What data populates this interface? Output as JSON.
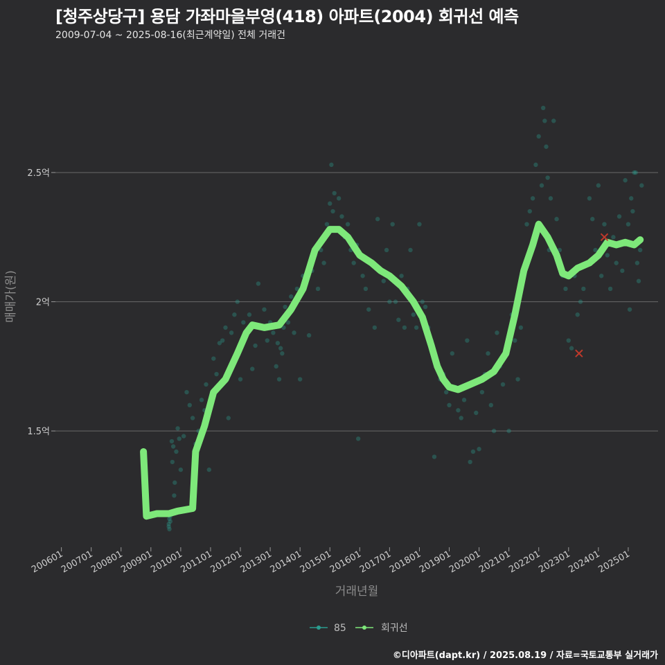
{
  "header": {
    "title": "[청주상당구] 용담 가좌마을부영(418) 아파트(2004) 회귀선 예측",
    "subtitle": "2009-07-04 ~ 2025-08-16(최근계약일) 전체 거래건"
  },
  "caption": "©디아파트(dapt.kr) / 2025.08.19 / 자료=국토교통부 실거래가",
  "chart_data": {
    "type": "scatter",
    "title": "[청주상당구] 용담 가좌마을부영(418) 아파트(2004) 회귀선 예측",
    "xlabel": "거래년월",
    "ylabel": "매매가(원)",
    "xlim": [
      2005.8,
      2026.0
    ],
    "ylim": [
      1.05,
      2.98
    ],
    "x_ticks": [
      {
        "v": 2006,
        "label": "200601"
      },
      {
        "v": 2007,
        "label": "200701"
      },
      {
        "v": 2008,
        "label": "200801"
      },
      {
        "v": 2009,
        "label": "200901"
      },
      {
        "v": 2010,
        "label": "201001"
      },
      {
        "v": 2011,
        "label": "201101"
      },
      {
        "v": 2012,
        "label": "201201"
      },
      {
        "v": 2013,
        "label": "201301"
      },
      {
        "v": 2014,
        "label": "201401"
      },
      {
        "v": 2015,
        "label": "201501"
      },
      {
        "v": 2016,
        "label": "201601"
      },
      {
        "v": 2017,
        "label": "201701"
      },
      {
        "v": 2018,
        "label": "201801"
      },
      {
        "v": 2019,
        "label": "201901"
      },
      {
        "v": 2020,
        "label": "202001"
      },
      {
        "v": 2021,
        "label": "202101"
      },
      {
        "v": 2022,
        "label": "202201"
      },
      {
        "v": 2023,
        "label": "202301"
      },
      {
        "v": 2024,
        "label": "202401"
      },
      {
        "v": 2025,
        "label": "202501"
      }
    ],
    "y_ticks": [
      {
        "v": 1.5,
        "label": "1.5억"
      },
      {
        "v": 2.0,
        "label": "2억"
      },
      {
        "v": 2.5,
        "label": "2.5억"
      }
    ],
    "legend": [
      {
        "name": "85",
        "color": "#2a9d8f"
      },
      {
        "name": "회귀선",
        "color": "#7ee87a"
      }
    ],
    "series": [
      {
        "name": "85",
        "color": "#2a9d8f",
        "points": [
          [
            2009.6,
            1.14
          ],
          [
            2009.6,
            1.13
          ],
          [
            2009.62,
            1.12
          ],
          [
            2009.62,
            1.16
          ],
          [
            2009.65,
            1.15
          ],
          [
            2009.65,
            1.17
          ],
          [
            2009.7,
            1.46
          ],
          [
            2009.72,
            1.38
          ],
          [
            2009.75,
            1.44
          ],
          [
            2009.78,
            1.25
          ],
          [
            2009.8,
            1.3
          ],
          [
            2009.85,
            1.42
          ],
          [
            2009.9,
            1.51
          ],
          [
            2009.95,
            1.47
          ],
          [
            2010.0,
            1.35
          ],
          [
            2010.1,
            1.48
          ],
          [
            2010.2,
            1.65
          ],
          [
            2010.3,
            1.6
          ],
          [
            2010.4,
            1.55
          ],
          [
            2010.5,
            1.45
          ],
          [
            2010.6,
            1.5
          ],
          [
            2010.7,
            1.62
          ],
          [
            2010.8,
            1.58
          ],
          [
            2010.85,
            1.68
          ],
          [
            2010.95,
            1.35
          ],
          [
            2011.05,
            1.65
          ],
          [
            2011.1,
            1.78
          ],
          [
            2011.2,
            1.72
          ],
          [
            2011.3,
            1.84
          ],
          [
            2011.4,
            1.85
          ],
          [
            2011.5,
            1.9
          ],
          [
            2011.6,
            1.55
          ],
          [
            2011.7,
            1.88
          ],
          [
            2011.8,
            1.95
          ],
          [
            2011.9,
            2.0
          ],
          [
            2012.0,
            1.7
          ],
          [
            2012.1,
            1.92
          ],
          [
            2012.2,
            1.88
          ],
          [
            2012.3,
            1.95
          ],
          [
            2012.4,
            1.74
          ],
          [
            2012.5,
            1.83
          ],
          [
            2012.6,
            2.07
          ],
          [
            2012.7,
            1.9
          ],
          [
            2012.8,
            1.97
          ],
          [
            2012.9,
            1.85
          ],
          [
            2013.0,
            1.92
          ],
          [
            2013.1,
            1.88
          ],
          [
            2013.2,
            1.75
          ],
          [
            2013.25,
            1.84
          ],
          [
            2013.3,
            1.7
          ],
          [
            2013.35,
            1.82
          ],
          [
            2013.4,
            1.8
          ],
          [
            2013.45,
            1.9
          ],
          [
            2013.5,
            1.98
          ],
          [
            2013.6,
            1.92
          ],
          [
            2013.7,
            2.02
          ],
          [
            2013.8,
            1.88
          ],
          [
            2013.9,
            2.05
          ],
          [
            2014.0,
            1.7
          ],
          [
            2014.1,
            2.1
          ],
          [
            2014.2,
            2.07
          ],
          [
            2014.3,
            1.87
          ],
          [
            2014.4,
            2.12
          ],
          [
            2014.5,
            2.18
          ],
          [
            2014.6,
            2.05
          ],
          [
            2014.7,
            2.2
          ],
          [
            2014.8,
            2.15
          ],
          [
            2014.9,
            2.3
          ],
          [
            2015.0,
            2.38
          ],
          [
            2015.05,
            2.53
          ],
          [
            2015.1,
            2.35
          ],
          [
            2015.15,
            2.42
          ],
          [
            2015.2,
            2.28
          ],
          [
            2015.3,
            2.4
          ],
          [
            2015.4,
            2.33
          ],
          [
            2015.5,
            2.25
          ],
          [
            2015.6,
            2.3
          ],
          [
            2015.7,
            2.2
          ],
          [
            2015.8,
            2.15
          ],
          [
            2015.9,
            2.22
          ],
          [
            2015.95,
            1.47
          ],
          [
            2016.0,
            2.18
          ],
          [
            2016.1,
            2.1
          ],
          [
            2016.2,
            2.05
          ],
          [
            2016.3,
            1.97
          ],
          [
            2016.4,
            2.15
          ],
          [
            2016.5,
            1.9
          ],
          [
            2016.6,
            2.32
          ],
          [
            2016.7,
            2.12
          ],
          [
            2016.8,
            2.08
          ],
          [
            2016.9,
            2.2
          ],
          [
            2017.0,
            2.0
          ],
          [
            2017.1,
            2.3
          ],
          [
            2017.2,
            2.0
          ],
          [
            2017.3,
            1.93
          ],
          [
            2017.4,
            2.1
          ],
          [
            2017.5,
            1.9
          ],
          [
            2017.6,
            2.05
          ],
          [
            2017.7,
            2.2
          ],
          [
            2017.8,
            1.95
          ],
          [
            2017.9,
            1.9
          ],
          [
            2018.0,
            2.3
          ],
          [
            2018.1,
            2.0
          ],
          [
            2018.2,
            1.98
          ],
          [
            2018.3,
            1.9
          ],
          [
            2018.4,
            1.85
          ],
          [
            2018.5,
            1.4
          ],
          [
            2018.6,
            1.75
          ],
          [
            2018.7,
            1.7
          ],
          [
            2018.8,
            1.72
          ],
          [
            2018.9,
            1.65
          ],
          [
            2019.0,
            1.6
          ],
          [
            2019.1,
            1.8
          ],
          [
            2019.2,
            1.67
          ],
          [
            2019.3,
            1.58
          ],
          [
            2019.4,
            1.55
          ],
          [
            2019.5,
            1.62
          ],
          [
            2019.6,
            1.85
          ],
          [
            2019.7,
            1.38
          ],
          [
            2019.8,
            1.42
          ],
          [
            2019.9,
            1.57
          ],
          [
            2020.0,
            1.43
          ],
          [
            2020.1,
            1.65
          ],
          [
            2020.2,
            1.72
          ],
          [
            2020.3,
            1.8
          ],
          [
            2020.4,
            1.6
          ],
          [
            2020.5,
            1.5
          ],
          [
            2020.6,
            1.88
          ],
          [
            2020.7,
            1.75
          ],
          [
            2020.8,
            1.68
          ],
          [
            2020.9,
            1.82
          ],
          [
            2021.0,
            1.5
          ],
          [
            2021.1,
            1.95
          ],
          [
            2021.2,
            1.85
          ],
          [
            2021.3,
            1.7
          ],
          [
            2021.4,
            1.9
          ],
          [
            2021.5,
            2.1
          ],
          [
            2021.6,
            2.3
          ],
          [
            2021.7,
            2.35
          ],
          [
            2021.8,
            2.4
          ],
          [
            2021.9,
            2.53
          ],
          [
            2022.0,
            2.64
          ],
          [
            2022.1,
            2.45
          ],
          [
            2022.15,
            2.75
          ],
          [
            2022.2,
            2.7
          ],
          [
            2022.25,
            2.6
          ],
          [
            2022.3,
            2.48
          ],
          [
            2022.35,
            2.2
          ],
          [
            2022.4,
            2.4
          ],
          [
            2022.5,
            2.7
          ],
          [
            2022.6,
            2.32
          ],
          [
            2022.7,
            2.2
          ],
          [
            2022.8,
            2.1
          ],
          [
            2022.9,
            2.05
          ],
          [
            2023.0,
            1.85
          ],
          [
            2023.1,
            1.82
          ],
          [
            2023.2,
            2.1
          ],
          [
            2023.3,
            1.95
          ],
          [
            2023.4,
            2.0
          ],
          [
            2023.5,
            2.05
          ],
          [
            2023.6,
            2.15
          ],
          [
            2023.7,
            2.4
          ],
          [
            2023.8,
            2.32
          ],
          [
            2023.9,
            2.2
          ],
          [
            2024.0,
            2.45
          ],
          [
            2024.1,
            2.1
          ],
          [
            2024.2,
            2.3
          ],
          [
            2024.3,
            2.18
          ],
          [
            2024.4,
            2.05
          ],
          [
            2024.5,
            2.25
          ],
          [
            2024.6,
            2.15
          ],
          [
            2024.7,
            2.33
          ],
          [
            2024.8,
            2.12
          ],
          [
            2024.9,
            2.47
          ],
          [
            2025.0,
            2.3
          ],
          [
            2025.05,
            1.97
          ],
          [
            2025.1,
            2.4
          ],
          [
            2025.15,
            2.35
          ],
          [
            2025.2,
            2.5
          ],
          [
            2025.25,
            2.5
          ],
          [
            2025.3,
            2.15
          ],
          [
            2025.35,
            2.08
          ],
          [
            2025.4,
            2.2
          ],
          [
            2025.45,
            2.45
          ]
        ]
      },
      {
        "name": "회귀선",
        "color": "#7ee87a",
        "points": [
          [
            2008.75,
            1.42
          ],
          [
            2008.85,
            1.17
          ],
          [
            2009.2,
            1.18
          ],
          [
            2009.6,
            1.18
          ],
          [
            2009.9,
            1.19
          ],
          [
            2010.4,
            1.2
          ],
          [
            2010.5,
            1.42
          ],
          [
            2010.8,
            1.52
          ],
          [
            2011.1,
            1.65
          ],
          [
            2011.5,
            1.7
          ],
          [
            2011.9,
            1.8
          ],
          [
            2012.2,
            1.88
          ],
          [
            2012.4,
            1.91
          ],
          [
            2012.8,
            1.9
          ],
          [
            2013.3,
            1.91
          ],
          [
            2013.7,
            1.97
          ],
          [
            2014.1,
            2.05
          ],
          [
            2014.5,
            2.2
          ],
          [
            2015.0,
            2.28
          ],
          [
            2015.3,
            2.28
          ],
          [
            2015.6,
            2.25
          ],
          [
            2016.0,
            2.18
          ],
          [
            2016.4,
            2.15
          ],
          [
            2016.7,
            2.12
          ],
          [
            2017.0,
            2.1
          ],
          [
            2017.4,
            2.06
          ],
          [
            2017.8,
            2.0
          ],
          [
            2018.1,
            1.94
          ],
          [
            2018.4,
            1.83
          ],
          [
            2018.6,
            1.75
          ],
          [
            2018.8,
            1.7
          ],
          [
            2019.0,
            1.67
          ],
          [
            2019.3,
            1.66
          ],
          [
            2019.7,
            1.68
          ],
          [
            2020.1,
            1.7
          ],
          [
            2020.5,
            1.73
          ],
          [
            2020.9,
            1.8
          ],
          [
            2021.2,
            1.95
          ],
          [
            2021.5,
            2.12
          ],
          [
            2021.8,
            2.22
          ],
          [
            2022.0,
            2.3
          ],
          [
            2022.3,
            2.25
          ],
          [
            2022.6,
            2.18
          ],
          [
            2022.8,
            2.11
          ],
          [
            2023.0,
            2.1
          ],
          [
            2023.3,
            2.13
          ],
          [
            2023.7,
            2.15
          ],
          [
            2024.0,
            2.18
          ],
          [
            2024.3,
            2.23
          ],
          [
            2024.6,
            2.22
          ],
          [
            2024.9,
            2.23
          ],
          [
            2025.2,
            2.22
          ],
          [
            2025.4,
            2.24
          ]
        ]
      }
    ],
    "highlight_points": [
      [
        2023.35,
        1.8
      ],
      [
        2024.2,
        2.25
      ]
    ],
    "grid": true
  }
}
